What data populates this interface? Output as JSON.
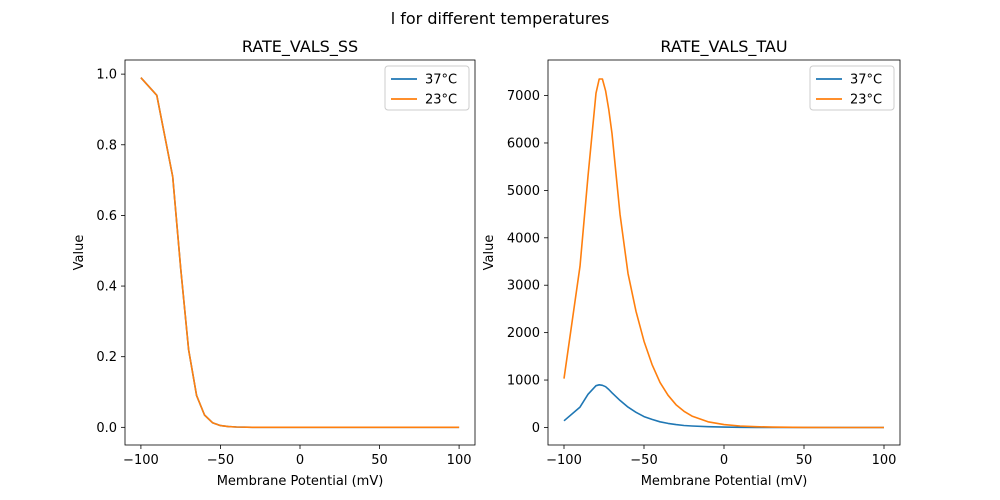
{
  "figure": {
    "title": "l for different temperatures"
  },
  "chart_data": [
    {
      "type": "line",
      "title": "RATE_VALS_SS",
      "xlabel": "Membrane Potential (mV)",
      "ylabel": "Value",
      "xlim": [
        -110,
        110
      ],
      "ylim": [
        -0.05,
        1.04
      ],
      "xticks": [
        -100,
        -50,
        0,
        50,
        100
      ],
      "xtick_labels": [
        "−100",
        "−50",
        "0",
        "50",
        "100"
      ],
      "yticks": [
        0.0,
        0.2,
        0.4,
        0.6,
        0.8,
        1.0
      ],
      "ytick_labels": [
        "0.0",
        "0.2",
        "0.4",
        "0.6",
        "0.8",
        "1.0"
      ],
      "grid": false,
      "legend": "top-right",
      "series": [
        {
          "name": "37°C",
          "color": "#1f77b4",
          "x": [
            -100,
            -90,
            -80,
            -75,
            -70,
            -65,
            -60,
            -55,
            -50,
            -45,
            -40,
            -30,
            -20,
            -10,
            0,
            25,
            50,
            75,
            100
          ],
          "y": [
            0.99,
            0.94,
            0.71,
            0.45,
            0.22,
            0.09,
            0.035,
            0.013,
            0.005,
            0.002,
            0.001,
            0.0,
            0.0,
            0.0,
            0.0,
            0.0,
            0.0,
            0.0,
            0.0
          ]
        },
        {
          "name": "23°C",
          "color": "#ff7f0e",
          "x": [
            -100,
            -90,
            -80,
            -75,
            -70,
            -65,
            -60,
            -55,
            -50,
            -45,
            -40,
            -30,
            -20,
            -10,
            0,
            25,
            50,
            75,
            100
          ],
          "y": [
            0.99,
            0.94,
            0.71,
            0.45,
            0.22,
            0.09,
            0.035,
            0.013,
            0.005,
            0.002,
            0.001,
            0.0,
            0.0,
            0.0,
            0.0,
            0.0,
            0.0,
            0.0,
            0.0
          ]
        }
      ]
    },
    {
      "type": "line",
      "title": "RATE_VALS_TAU",
      "xlabel": "Membrane Potential (mV)",
      "ylabel": "Value",
      "xlim": [
        -110,
        110
      ],
      "ylim": [
        -370,
        7750
      ],
      "xticks": [
        -100,
        -50,
        0,
        50,
        100
      ],
      "xtick_labels": [
        "−100",
        "−50",
        "0",
        "50",
        "100"
      ],
      "yticks": [
        0,
        1000,
        2000,
        3000,
        4000,
        5000,
        6000,
        7000
      ],
      "ytick_labels": [
        "0",
        "1000",
        "2000",
        "3000",
        "4000",
        "5000",
        "6000",
        "7000"
      ],
      "grid": false,
      "legend": "top-right",
      "series": [
        {
          "name": "37°C",
          "color": "#1f77b4",
          "x": [
            -100,
            -90,
            -85,
            -80,
            -78,
            -76,
            -74,
            -72,
            -70,
            -65,
            -60,
            -55,
            -50,
            -45,
            -40,
            -35,
            -30,
            -25,
            -20,
            -10,
            0,
            10,
            20,
            30,
            50,
            75,
            100
          ],
          "y": [
            140,
            430,
            700,
            880,
            900,
            890,
            860,
            800,
            730,
            570,
            430,
            320,
            230,
            170,
            120,
            85,
            60,
            42,
            30,
            15,
            8,
            4,
            2,
            1,
            0,
            0,
            0
          ]
        },
        {
          "name": "23°C",
          "color": "#ff7f0e",
          "x": [
            -100,
            -90,
            -85,
            -80,
            -78,
            -76,
            -74,
            -72,
            -70,
            -65,
            -60,
            -55,
            -50,
            -45,
            -40,
            -35,
            -30,
            -25,
            -20,
            -10,
            0,
            10,
            20,
            30,
            50,
            75,
            100
          ],
          "y": [
            1030,
            3400,
            5300,
            7050,
            7350,
            7350,
            7100,
            6700,
            6200,
            4500,
            3250,
            2450,
            1820,
            1330,
            950,
            680,
            480,
            340,
            240,
            120,
            60,
            30,
            15,
            8,
            2,
            0,
            0
          ]
        }
      ]
    }
  ]
}
